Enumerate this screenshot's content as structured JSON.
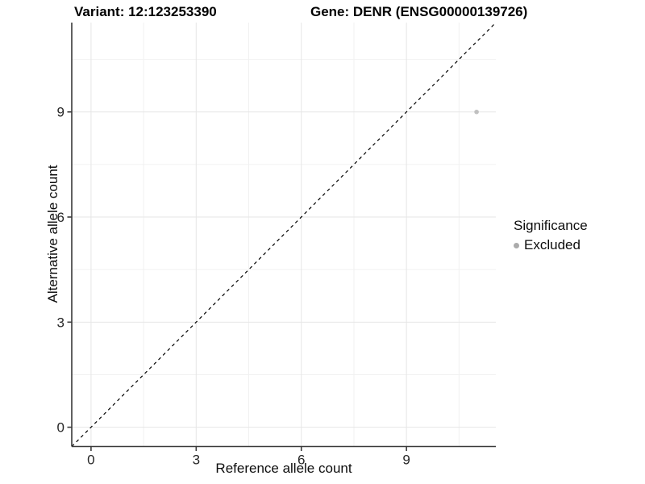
{
  "chart_data": {
    "type": "scatter",
    "title_left": "Variant: 12:123253390",
    "title_right": "Gene: DENR (ENSG00000139726)",
    "xlabel": "Reference allele count",
    "ylabel": "Alternative allele count",
    "x_ticks": [
      0,
      3,
      6,
      9
    ],
    "y_ticks": [
      0,
      3,
      6,
      9
    ],
    "x_minor_ticks": [
      1.5,
      4.5,
      7.5,
      10.5
    ],
    "y_minor_ticks": [
      1.5,
      4.5,
      7.5,
      10.5
    ],
    "xlim": [
      0,
      11
    ],
    "ylim": [
      0,
      11
    ],
    "axis_expansion": 0.05,
    "grid": "on",
    "points": [
      {
        "x": 11,
        "y": 9,
        "series": "Excluded"
      }
    ],
    "reference_line": {
      "slope": 1,
      "intercept": 0,
      "style": "dashed",
      "color": "#000000"
    },
    "legend": {
      "title": "Significance",
      "position": "right",
      "items": [
        {
          "label": "Excluded",
          "color": "#ababab"
        }
      ]
    },
    "colors": {
      "point": "#c0c0c0",
      "grid_major": "#e6e6e6",
      "grid_minor": "#f1f1f1",
      "axis_line": "#3a3a3a",
      "tick_label": "#262626",
      "background": "#ffffff"
    }
  }
}
